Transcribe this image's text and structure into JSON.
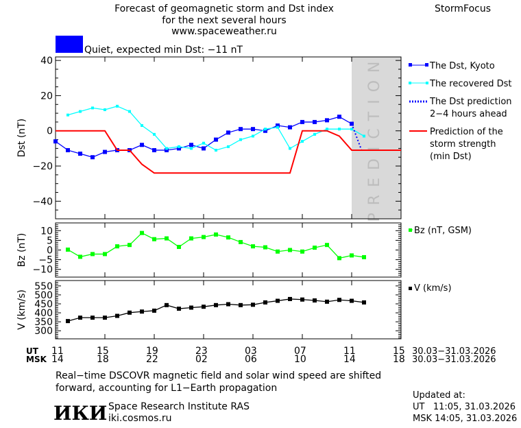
{
  "header": {
    "title_line1": "Forecast of geomagnetic storm and Dst index",
    "title_line2": "for the next several hours",
    "site": "www.spaceweather.ru",
    "brand": "StormFocus",
    "status_color": "#0000ff",
    "status_text": "Quiet, expected min Dst: −11 nT"
  },
  "prediction_label": "PREDICTION",
  "legend": {
    "kyoto": "The Dst, Kyoto",
    "recovered": "The recovered Dst",
    "pred_line1": "The Dst prediction",
    "pred_line2": "2−4 hours ahead",
    "storm_line1": "Prediction of the",
    "storm_line2": "storm strength",
    "storm_line3": "(min Dst)",
    "bz": "Bz (nT, GSM)",
    "v": "V (km/s)"
  },
  "time_axis": {
    "ut_label": "UT",
    "msk_label": "MSK",
    "ut_ticks": [
      "11",
      "15",
      "19",
      "23",
      "03",
      "07",
      "11",
      "15"
    ],
    "msk_ticks": [
      "14",
      "18",
      "22",
      "02",
      "06",
      "10",
      "14",
      "18"
    ],
    "date_range": "30.03−31.03.2026"
  },
  "chart_data": [
    {
      "type": "line",
      "ylabel": "Dst (nT)",
      "ylim": [
        -50,
        42
      ],
      "yticks": [
        "40",
        "20",
        "0",
        "-20",
        "-40"
      ],
      "x_unit_hours_from": "UT 11, 30.03",
      "prediction_region_hours": [
        24,
        28
      ],
      "series": [
        {
          "name": "The Dst, Kyoto",
          "color": "#0000ff",
          "x": [
            0,
            1,
            2,
            3,
            4,
            5,
            6,
            7,
            8,
            9,
            10,
            11,
            12,
            13,
            14,
            15,
            16,
            17,
            18,
            19,
            20,
            21,
            22,
            23,
            24
          ],
          "values": [
            -6,
            -11,
            -13,
            -15,
            -12,
            -11,
            -11,
            -8,
            -11,
            -11,
            -10,
            -8,
            -10,
            -5,
            -1,
            1,
            1,
            0,
            3,
            2,
            5,
            5,
            6,
            8,
            4
          ]
        },
        {
          "name": "The recovered Dst",
          "color": "#00ffff",
          "x": [
            1,
            2,
            3,
            4,
            5,
            6,
            7,
            8,
            9,
            10,
            11,
            12,
            13,
            14,
            15,
            16,
            17,
            18,
            19,
            20,
            21,
            22,
            23,
            24,
            25
          ],
          "values": [
            9,
            11,
            13,
            12,
            14,
            11,
            3,
            -2,
            -10,
            -9,
            -10,
            -7,
            -11,
            -9,
            -5,
            -3,
            1,
            2,
            -10,
            -6,
            -2,
            1,
            1,
            1,
            -3
          ]
        },
        {
          "name": "The Dst prediction 2-4 hours ahead",
          "color": "#0000ff",
          "x": [
            24,
            24.8,
            27
          ],
          "values": [
            4,
            -11,
            -11
          ]
        },
        {
          "name": "Prediction of the storm strength (min Dst)",
          "color": "#ff0000",
          "x": [
            0,
            4,
            5,
            6,
            7,
            8,
            19,
            20,
            22,
            23,
            24,
            28
          ],
          "values": [
            0,
            0,
            -11,
            -11,
            -19,
            -24,
            -24,
            0,
            0,
            -3,
            -11,
            -11
          ]
        }
      ]
    },
    {
      "type": "line",
      "ylabel": "Bz (nT)",
      "ylim": [
        -14,
        14
      ],
      "yticks": [
        "10",
        "5",
        "0",
        "-5",
        "-10"
      ],
      "series": [
        {
          "name": "Bz (nT, GSM)",
          "color": "#00ff00",
          "x": [
            1,
            2,
            3,
            4,
            5,
            6,
            7,
            8,
            9,
            10,
            11,
            12,
            13,
            14,
            15,
            16,
            17,
            18,
            19,
            20,
            21,
            22,
            23,
            24,
            25
          ],
          "values": [
            0.2,
            -3.5,
            -2.1,
            -2.1,
            1.9,
            2.6,
            8.8,
            5.6,
            6,
            1.6,
            6,
            6.7,
            8,
            6.5,
            4.1,
            1.9,
            1.4,
            -0.8,
            0,
            -0.8,
            1.2,
            2.6,
            -4.2,
            -2.8,
            -3.7
          ]
        }
      ]
    },
    {
      "type": "line",
      "ylabel": "V (km/s)",
      "ylim": [
        255,
        580
      ],
      "yticks": [
        "550",
        "500",
        "450",
        "400",
        "350",
        "300"
      ],
      "series": [
        {
          "name": "V (km/s)",
          "color": "#000000",
          "x": [
            1,
            2,
            3,
            4,
            5,
            6,
            7,
            8,
            9,
            10,
            11,
            12,
            13,
            14,
            15,
            16,
            17,
            18,
            19,
            20,
            21,
            22,
            23,
            24,
            25
          ],
          "values": [
            354,
            373,
            373,
            373,
            383,
            401,
            407,
            412,
            443,
            423,
            429,
            434,
            443,
            448,
            443,
            445,
            458,
            467,
            477,
            474,
            469,
            462,
            472,
            467,
            458
          ]
        }
      ]
    }
  ],
  "footer": {
    "note_line1": "Real−time DSCOVR magnetic field and solar wind speed are shifted",
    "note_line2": "forward, accounting for L1−Earth propagation",
    "logo": "ИКИ",
    "institute": "Space Research Institute RAS",
    "url": "iki.cosmos.ru",
    "updated_label": "Updated at:",
    "updated_ut": "UT   11:05, 31.03.2026",
    "updated_msk": "MSK 14:05, 31.03.2026"
  }
}
